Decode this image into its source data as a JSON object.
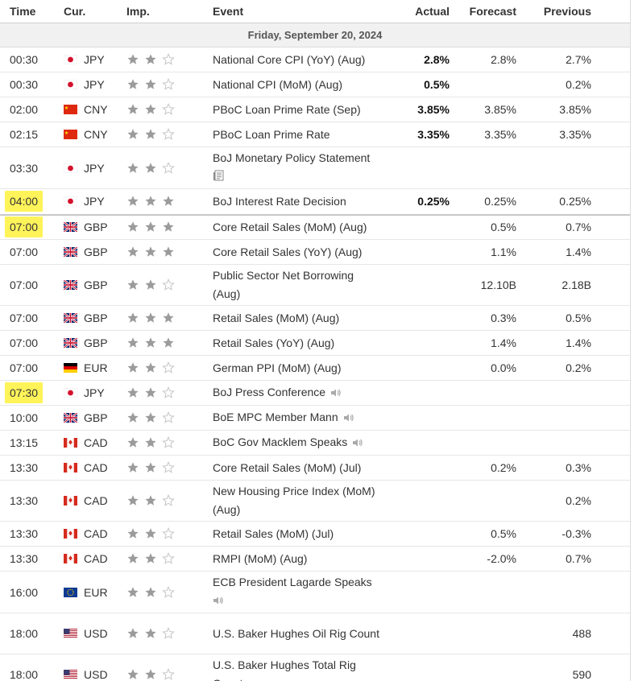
{
  "headers": {
    "time": "Time",
    "currency": "Cur.",
    "importance": "Imp.",
    "event": "Event",
    "actual": "Actual",
    "forecast": "Forecast",
    "previous": "Previous"
  },
  "date_label": "Friday, September 20, 2024",
  "colors": {
    "highlight": "#fff35a",
    "star_on": "#9b9b9b",
    "star_off": "#c6c6c6"
  },
  "events": [
    {
      "time": "00:30",
      "flag": "jp",
      "currency": "JPY",
      "stars": 2,
      "event": "National Core CPI (YoY) (Aug)",
      "actual": "2.8%",
      "forecast": "2.8%",
      "previous": "2.7%",
      "h": 31
    },
    {
      "time": "00:30",
      "flag": "jp",
      "currency": "JPY",
      "stars": 2,
      "event": "National CPI (MoM) (Aug)",
      "actual": "0.5%",
      "forecast": "",
      "previous": "0.2%",
      "h": 31
    },
    {
      "time": "02:00",
      "flag": "cn",
      "currency": "CNY",
      "stars": 2,
      "event": "PBoC Loan Prime Rate (Sep)",
      "actual": "3.85%",
      "forecast": "3.85%",
      "previous": "3.85%",
      "h": 31
    },
    {
      "time": "02:15",
      "flag": "cn",
      "currency": "CNY",
      "stars": 2,
      "event": "PBoC Loan Prime Rate",
      "actual": "3.35%",
      "forecast": "3.35%",
      "previous": "3.35%",
      "h": 31
    },
    {
      "time": "03:30",
      "flag": "jp",
      "currency": "JPY",
      "stars": 2,
      "event": "BoJ Monetary Policy Statement",
      "icon": "document-icon",
      "icon_block": true,
      "actual": "",
      "forecast": "",
      "previous": "",
      "h": 52
    },
    {
      "time": "04:00",
      "flag": "jp",
      "currency": "JPY",
      "stars": 3,
      "event": "BoJ Interest Rate Decision",
      "actual": "0.25%",
      "forecast": "0.25%",
      "previous": "0.25%",
      "highlight": true,
      "h": 32,
      "thick": true
    },
    {
      "time": "07:00",
      "flag": "gb",
      "currency": "GBP",
      "stars": 3,
      "event": "Core Retail Sales (MoM) (Aug)",
      "actual": "",
      "forecast": "0.5%",
      "previous": "0.7%",
      "highlight": true,
      "h": 31
    },
    {
      "time": "07:00",
      "flag": "gb",
      "currency": "GBP",
      "stars": 3,
      "event": "Core Retail Sales (YoY) (Aug)",
      "actual": "",
      "forecast": "1.1%",
      "previous": "1.4%",
      "h": 31
    },
    {
      "time": "07:00",
      "flag": "gb",
      "currency": "GBP",
      "stars": 2,
      "event": "Public Sector Net Borrowing (Aug)",
      "actual": "",
      "forecast": "12.10B",
      "previous": "2.18B",
      "h": 51
    },
    {
      "time": "07:00",
      "flag": "gb",
      "currency": "GBP",
      "stars": 3,
      "event": "Retail Sales (MoM) (Aug)",
      "actual": "",
      "forecast": "0.3%",
      "previous": "0.5%",
      "h": 31
    },
    {
      "time": "07:00",
      "flag": "gb",
      "currency": "GBP",
      "stars": 3,
      "event": "Retail Sales (YoY) (Aug)",
      "actual": "",
      "forecast": "1.4%",
      "previous": "1.4%",
      "h": 31
    },
    {
      "time": "07:00",
      "flag": "de",
      "currency": "EUR",
      "stars": 2,
      "event": "German PPI (MoM) (Aug)",
      "actual": "",
      "forecast": "0.0%",
      "previous": "0.2%",
      "h": 31
    },
    {
      "time": "07:30",
      "flag": "jp",
      "currency": "JPY",
      "stars": 2,
      "event": "BoJ Press Conference",
      "icon": "speaker-icon",
      "actual": "",
      "forecast": "",
      "previous": "",
      "highlight": true,
      "h": 31
    },
    {
      "time": "10:00",
      "flag": "gb",
      "currency": "GBP",
      "stars": 2,
      "event": "BoE MPC Member Mann",
      "icon": "speaker-icon",
      "actual": "",
      "forecast": "",
      "previous": "",
      "h": 31
    },
    {
      "time": "13:15",
      "flag": "ca",
      "currency": "CAD",
      "stars": 2,
      "event": "BoC Gov Macklem Speaks",
      "icon": "speaker-icon",
      "actual": "",
      "forecast": "",
      "previous": "",
      "h": 31
    },
    {
      "time": "13:30",
      "flag": "ca",
      "currency": "CAD",
      "stars": 2,
      "event": "Core Retail Sales (MoM) (Jul)",
      "actual": "",
      "forecast": "0.2%",
      "previous": "0.3%",
      "h": 31
    },
    {
      "time": "13:30",
      "flag": "ca",
      "currency": "CAD",
      "stars": 2,
      "event": "New Housing Price Index (MoM) (Aug)",
      "actual": "",
      "forecast": "",
      "previous": "0.2%",
      "h": 51
    },
    {
      "time": "13:30",
      "flag": "ca",
      "currency": "CAD",
      "stars": 2,
      "event": "Retail Sales (MoM) (Jul)",
      "actual": "",
      "forecast": "0.5%",
      "previous": "-0.3%",
      "h": 31
    },
    {
      "time": "13:30",
      "flag": "ca",
      "currency": "CAD",
      "stars": 2,
      "event": "RMPI (MoM) (Aug)",
      "actual": "",
      "forecast": "-2.0%",
      "previous": "0.7%",
      "h": 31
    },
    {
      "time": "16:00",
      "flag": "eu",
      "currency": "EUR",
      "stars": 2,
      "event": "ECB President Lagarde Speaks",
      "icon": "speaker-icon",
      "icon_block": true,
      "actual": "",
      "forecast": "",
      "previous": "",
      "h": 52
    },
    {
      "time": "18:00",
      "flag": "us",
      "currency": "USD",
      "stars": 2,
      "event": "U.S. Baker Hughes Oil Rig Count",
      "actual": "",
      "forecast": "",
      "previous": "488",
      "h": 51
    },
    {
      "time": "18:00",
      "flag": "us",
      "currency": "USD",
      "stars": 2,
      "event": "U.S. Baker Hughes Total Rig Count",
      "actual": "",
      "forecast": "",
      "previous": "590",
      "h": 51
    }
  ]
}
